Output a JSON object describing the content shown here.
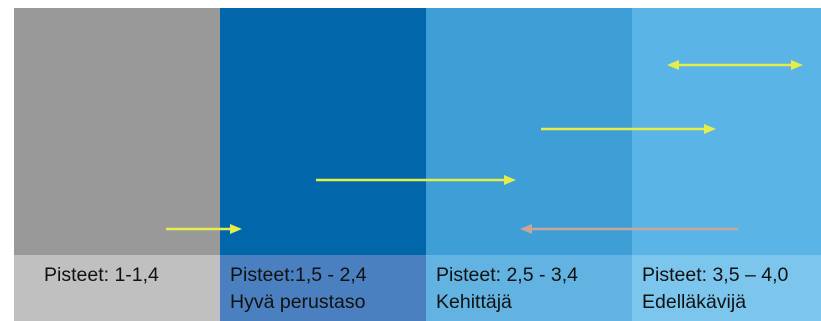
{
  "levels": [
    {
      "range": "Pisteet: 1-1,4",
      "name": "",
      "top_color": "#999999",
      "bottom_color": "#c0c0c0"
    },
    {
      "range": "Pisteet:1,5 - 2,4",
      "name": "Hyvä perustaso",
      "top_color": "#0167aa",
      "bottom_color": "#4a7fc0"
    },
    {
      "range": "Pisteet: 2,5 - 3,4",
      "name": "Kehittäjä",
      "top_color": "#3d9fd6",
      "bottom_color": "#62b3e2"
    },
    {
      "range": "Pisteet: 3,5 – 4,0",
      "name": "Edelläkävijä",
      "top_color": "#5ab4e6",
      "bottom_color": "#7cc6ee"
    }
  ],
  "colors": {
    "arrow_main": "#e6ec4a",
    "arrow_back": "#c8a598"
  }
}
